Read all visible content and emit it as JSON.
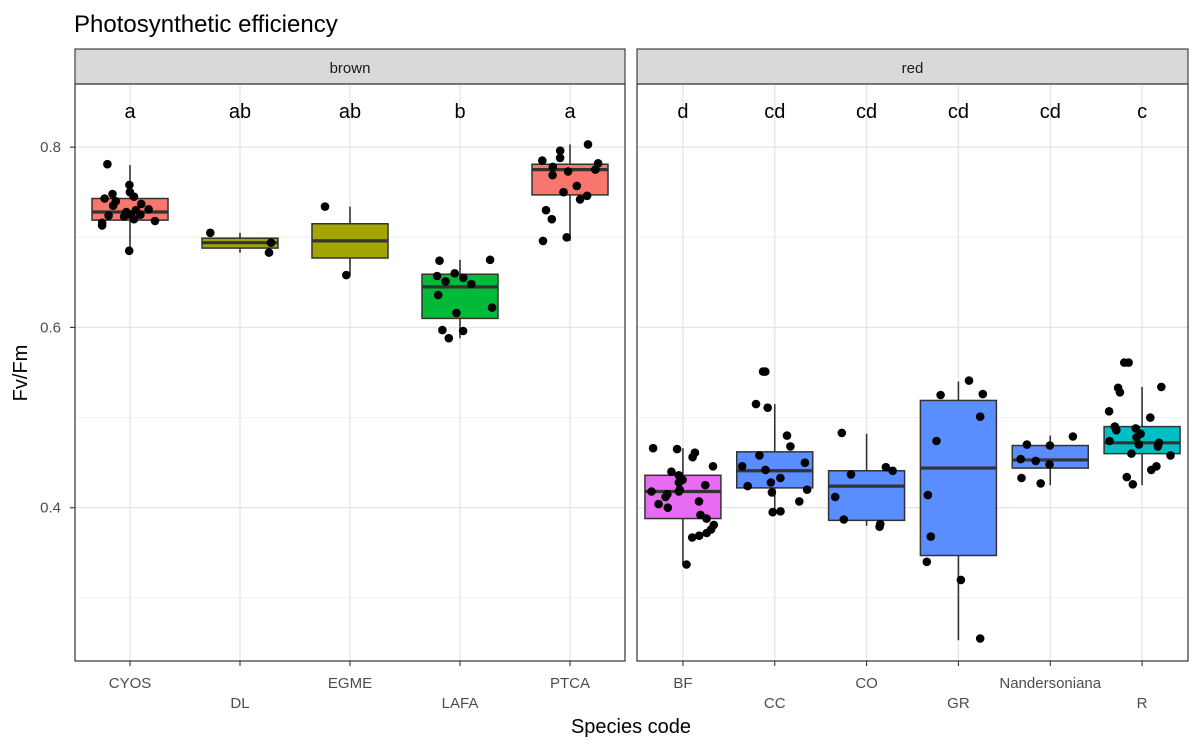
{
  "chart_data": {
    "type": "box",
    "title": "Photosynthetic efficiency",
    "xlabel": "Species code",
    "ylabel": "Fv/Fm",
    "ylim": [
      0.23,
      0.87
    ],
    "yticks": [
      0.4,
      0.6,
      0.8
    ],
    "ytick_labels": [
      "0.4",
      "0.6",
      "0.8"
    ],
    "grid": true,
    "panels": [
      {
        "strip": "brown",
        "groups": [
          {
            "code": "CYOS",
            "letter": "a",
            "fill": "#f8766d",
            "q1": 0.719,
            "median": 0.728,
            "q3": 0.743,
            "whisker_low": 0.685,
            "whisker_high": 0.78,
            "points": [
              0.758,
              0.745,
              0.743,
              0.735,
              0.728,
              0.725,
              0.716,
              0.718,
              0.73,
              0.723,
              0.74,
              0.731,
              0.725,
              0.713,
              0.75,
              0.748,
              0.737,
              0.781,
              0.72,
              0.685,
              0.724
            ]
          },
          {
            "code": "DL",
            "letter": "ab",
            "fill": "#a3a500",
            "q1": 0.688,
            "median": 0.694,
            "q3": 0.699,
            "whisker_low": 0.683,
            "whisker_high": 0.705,
            "points": [
              0.705,
              0.683,
              0.694
            ]
          },
          {
            "code": "EGME",
            "letter": "ab",
            "fill": "#a3a500",
            "q1": 0.677,
            "median": 0.696,
            "q3": 0.715,
            "whisker_low": 0.658,
            "whisker_high": 0.734,
            "points": [
              0.734,
              0.658
            ]
          },
          {
            "code": "LAFA",
            "letter": "b",
            "fill": "#00ba38",
            "q1": 0.61,
            "median": 0.645,
            "q3": 0.659,
            "whisker_low": 0.588,
            "whisker_high": 0.675,
            "points": [
              0.675,
              0.674,
              0.66,
              0.655,
              0.648,
              0.651,
              0.636,
              0.622,
              0.616,
              0.597,
              0.596,
              0.588,
              0.657
            ]
          },
          {
            "code": "PTCA",
            "letter": "a",
            "fill": "#f8766d",
            "q1": 0.747,
            "median": 0.775,
            "q3": 0.781,
            "whisker_low": 0.696,
            "whisker_high": 0.803,
            "points": [
              0.803,
              0.796,
              0.788,
              0.785,
              0.782,
              0.778,
              0.775,
              0.773,
              0.769,
              0.757,
              0.75,
              0.746,
              0.742,
              0.73,
              0.72,
              0.7,
              0.696
            ]
          }
        ]
      },
      {
        "strip": "red",
        "groups": [
          {
            "code": "BF",
            "letter": "d",
            "fill": "#e76bf3",
            "q1": 0.388,
            "median": 0.418,
            "q3": 0.436,
            "whisker_low": 0.337,
            "whisker_high": 0.466,
            "points": [
              0.466,
              0.465,
              0.461,
              0.456,
              0.446,
              0.44,
              0.436,
              0.431,
              0.428,
              0.425,
              0.42,
              0.418,
              0.415,
              0.412,
              0.407,
              0.404,
              0.4,
              0.392,
              0.388,
              0.381,
              0.376,
              0.372,
              0.369,
              0.367,
              0.337,
              0.418
            ]
          },
          {
            "code": "CC",
            "letter": "cd",
            "fill": "#5a8dff",
            "q1": 0.422,
            "median": 0.441,
            "q3": 0.462,
            "whisker_low": 0.393,
            "whisker_high": 0.515,
            "points": [
              0.551,
              0.551,
              0.515,
              0.511,
              0.48,
              0.468,
              0.458,
              0.45,
              0.446,
              0.442,
              0.433,
              0.428,
              0.424,
              0.42,
              0.417,
              0.407,
              0.396,
              0.395
            ]
          },
          {
            "code": "CO",
            "letter": "cd",
            "fill": "#5a8dff",
            "q1": 0.386,
            "median": 0.424,
            "q3": 0.441,
            "whisker_low": 0.38,
            "whisker_high": 0.482,
            "points": [
              0.483,
              0.445,
              0.441,
              0.437,
              0.412,
              0.387,
              0.382,
              0.379
            ]
          },
          {
            "code": "GR",
            "letter": "cd",
            "fill": "#5a8dff",
            "q1": 0.347,
            "median": 0.444,
            "q3": 0.519,
            "whisker_low": 0.253,
            "whisker_high": 0.54,
            "points": [
              0.541,
              0.526,
              0.525,
              0.501,
              0.474,
              0.414,
              0.368,
              0.34,
              0.32,
              0.255
            ]
          },
          {
            "code": "Nandersoniana",
            "letter": "cd",
            "fill": "#5a8dff",
            "q1": 0.444,
            "median": 0.453,
            "q3": 0.469,
            "whisker_low": 0.425,
            "whisker_high": 0.48,
            "points": [
              0.479,
              0.47,
              0.469,
              0.454,
              0.452,
              0.448,
              0.433,
              0.427
            ]
          },
          {
            "code": "R",
            "letter": "c",
            "fill": "#00bfc4",
            "q1": 0.46,
            "median": 0.472,
            "q3": 0.49,
            "whisker_low": 0.425,
            "whisker_high": 0.534,
            "points": [
              0.561,
              0.561,
              0.534,
              0.533,
              0.528,
              0.507,
              0.5,
              0.49,
              0.488,
              0.486,
              0.482,
              0.478,
              0.474,
              0.472,
              0.47,
              0.468,
              0.46,
              0.458,
              0.446,
              0.442,
              0.434,
              0.426
            ]
          }
        ]
      }
    ]
  }
}
